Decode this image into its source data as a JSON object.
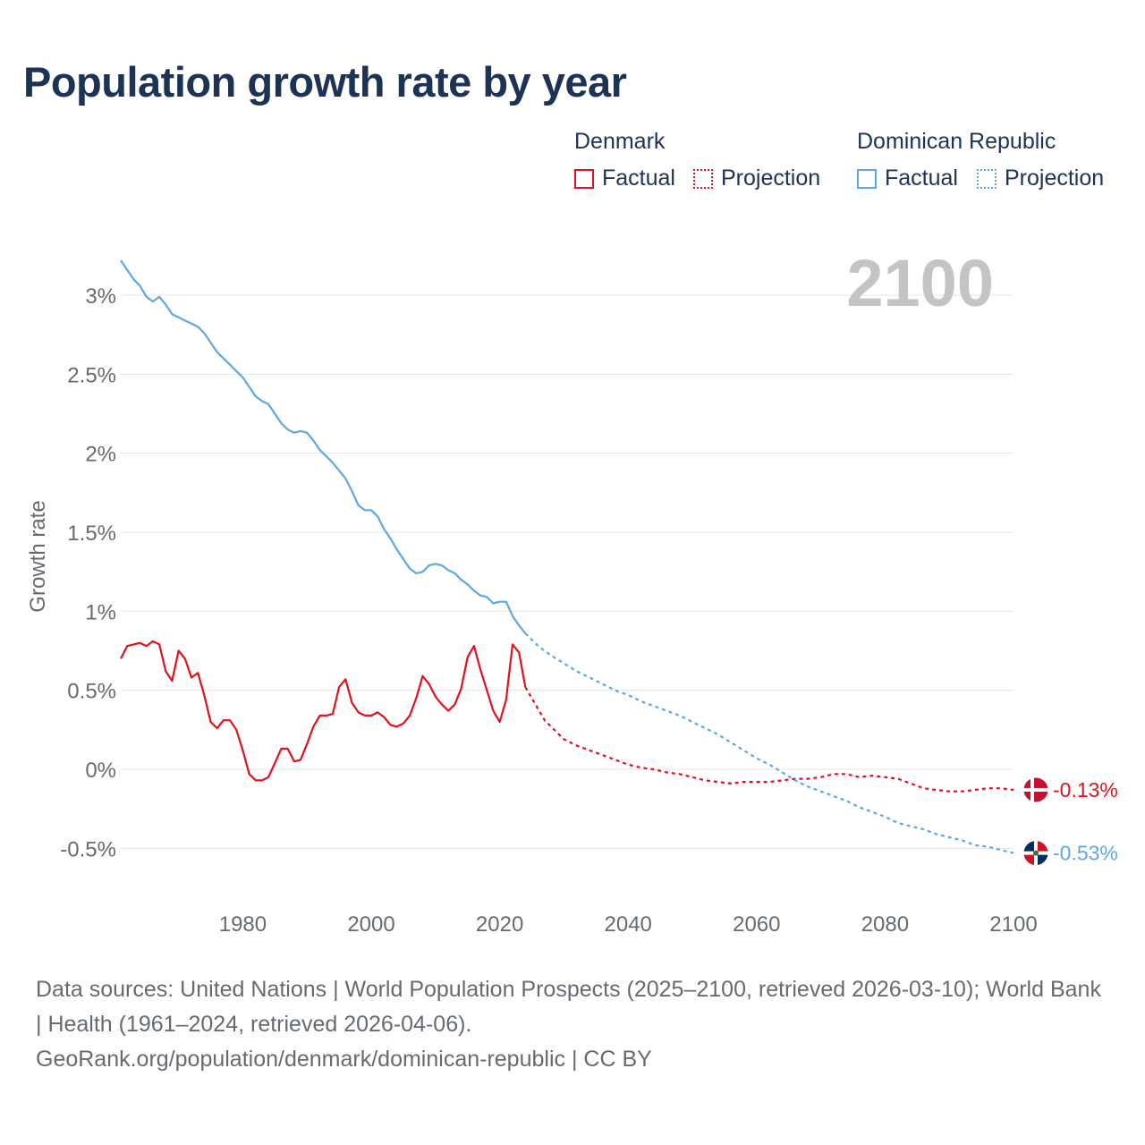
{
  "title": "Population growth rate by year",
  "legend": {
    "groups": [
      {
        "name": "Denmark",
        "factual": "Factual",
        "projection": "Projection"
      },
      {
        "name": "Dominican Republic",
        "factual": "Factual",
        "projection": "Projection"
      }
    ]
  },
  "colors": {
    "denmark": "#e5101c",
    "dominican": "#5fa7e3",
    "year_label": "#c4c4c4",
    "title": "#1c3355"
  },
  "footer": {
    "sources": "Data sources: United Nations | World Population Prospects (2025–2100, retrieved 2026-03-10); World Bank | Health (1961–2024, retrieved 2026-04-06).",
    "link": "GeoRank.org/population/denmark/dominican-republic | CC BY"
  },
  "chart_data": {
    "type": "line",
    "title": "Population growth rate by year",
    "ylabel": "Growth rate",
    "xlabel": "",
    "year_label": "2100",
    "xlim": [
      1961,
      2100
    ],
    "ylim": [
      -0.65,
      3.25
    ],
    "x_ticks": [
      1980,
      2000,
      2020,
      2040,
      2060,
      2080,
      2100
    ],
    "y_ticks": [
      {
        "value": -0.5,
        "label": "-0.5%"
      },
      {
        "value": 0,
        "label": "0%"
      },
      {
        "value": 0.5,
        "label": "0.5%"
      },
      {
        "value": 1,
        "label": "1%"
      },
      {
        "value": 1.5,
        "label": "1.5%"
      },
      {
        "value": 2,
        "label": "2%"
      },
      {
        "value": 2.5,
        "label": "2.5%"
      },
      {
        "value": 3,
        "label": "3%"
      }
    ],
    "series": [
      {
        "name": "Denmark",
        "end_label": "-0.13%",
        "flag": "denmark-flag",
        "factual": {
          "x": [
            1961,
            1962,
            1963,
            1964,
            1965,
            1966,
            1967,
            1968,
            1969,
            1970,
            1971,
            1972,
            1973,
            1974,
            1975,
            1976,
            1977,
            1978,
            1979,
            1980,
            1981,
            1982,
            1983,
            1984,
            1985,
            1986,
            1987,
            1988,
            1989,
            1990,
            1991,
            1992,
            1993,
            1994,
            1995,
            1996,
            1997,
            1998,
            1999,
            2000,
            2001,
            2002,
            2003,
            2004,
            2005,
            2006,
            2007,
            2008,
            2009,
            2010,
            2011,
            2012,
            2013,
            2014,
            2015,
            2016,
            2017,
            2018,
            2019,
            2020,
            2021,
            2022,
            2023,
            2024
          ],
          "y": [
            0.7,
            0.78,
            0.79,
            0.8,
            0.78,
            0.81,
            0.79,
            0.62,
            0.56,
            0.75,
            0.7,
            0.58,
            0.61,
            0.47,
            0.3,
            0.26,
            0.31,
            0.31,
            0.25,
            0.12,
            -0.03,
            -0.07,
            -0.07,
            -0.05,
            0.04,
            0.13,
            0.13,
            0.05,
            0.06,
            0.16,
            0.27,
            0.34,
            0.34,
            0.35,
            0.52,
            0.57,
            0.42,
            0.36,
            0.34,
            0.34,
            0.36,
            0.33,
            0.28,
            0.27,
            0.29,
            0.34,
            0.45,
            0.59,
            0.54,
            0.46,
            0.41,
            0.37,
            0.41,
            0.51,
            0.71,
            0.78,
            0.63,
            0.5,
            0.37,
            0.3,
            0.44,
            0.79,
            0.74,
            0.52
          ]
        },
        "projection": {
          "x": [
            2024,
            2025,
            2026,
            2027,
            2028,
            2029,
            2030,
            2032,
            2034,
            2036,
            2038,
            2040,
            2042,
            2044,
            2046,
            2048,
            2050,
            2052,
            2054,
            2056,
            2058,
            2060,
            2062,
            2064,
            2066,
            2068,
            2070,
            2072,
            2074,
            2076,
            2078,
            2080,
            2082,
            2084,
            2086,
            2088,
            2090,
            2092,
            2094,
            2096,
            2098,
            2100
          ],
          "y": [
            0.52,
            0.45,
            0.38,
            0.31,
            0.27,
            0.23,
            0.19,
            0.15,
            0.12,
            0.09,
            0.06,
            0.03,
            0.01,
            0.0,
            -0.02,
            -0.03,
            -0.05,
            -0.07,
            -0.08,
            -0.09,
            -0.08,
            -0.08,
            -0.08,
            -0.07,
            -0.06,
            -0.06,
            -0.05,
            -0.03,
            -0.03,
            -0.05,
            -0.04,
            -0.05,
            -0.06,
            -0.09,
            -0.12,
            -0.13,
            -0.14,
            -0.14,
            -0.13,
            -0.12,
            -0.12,
            -0.13
          ]
        }
      },
      {
        "name": "Dominican Republic",
        "end_label": "-0.53%",
        "flag": "dominican-republic-flag",
        "factual": {
          "x": [
            1961,
            1962,
            1963,
            1964,
            1965,
            1966,
            1967,
            1968,
            1969,
            1970,
            1971,
            1972,
            1973,
            1974,
            1975,
            1976,
            1977,
            1978,
            1979,
            1980,
            1981,
            1982,
            1983,
            1984,
            1985,
            1986,
            1987,
            1988,
            1989,
            1990,
            1991,
            1992,
            1993,
            1994,
            1995,
            1996,
            1997,
            1998,
            1999,
            2000,
            2001,
            2002,
            2003,
            2004,
            2005,
            2006,
            2007,
            2008,
            2009,
            2010,
            2011,
            2012,
            2013,
            2014,
            2015,
            2016,
            2017,
            2018,
            2019,
            2020,
            2021,
            2022,
            2023,
            2024
          ],
          "y": [
            3.22,
            3.16,
            3.1,
            3.06,
            2.99,
            2.96,
            2.99,
            2.94,
            2.88,
            2.86,
            2.84,
            2.82,
            2.8,
            2.76,
            2.7,
            2.64,
            2.6,
            2.56,
            2.52,
            2.48,
            2.42,
            2.36,
            2.33,
            2.31,
            2.25,
            2.19,
            2.15,
            2.13,
            2.14,
            2.13,
            2.08,
            2.02,
            1.98,
            1.94,
            1.89,
            1.84,
            1.76,
            1.67,
            1.64,
            1.64,
            1.6,
            1.52,
            1.46,
            1.39,
            1.33,
            1.27,
            1.24,
            1.25,
            1.29,
            1.3,
            1.29,
            1.26,
            1.24,
            1.2,
            1.17,
            1.13,
            1.1,
            1.09,
            1.05,
            1.06,
            1.06,
            0.97,
            0.91,
            0.86
          ]
        },
        "projection": {
          "x": [
            2024,
            2026,
            2028,
            2030,
            2032,
            2034,
            2036,
            2038,
            2040,
            2042,
            2044,
            2046,
            2048,
            2050,
            2052,
            2054,
            2056,
            2058,
            2060,
            2062,
            2064,
            2066,
            2068,
            2070,
            2072,
            2074,
            2076,
            2078,
            2080,
            2082,
            2084,
            2086,
            2088,
            2090,
            2092,
            2094,
            2096,
            2098,
            2100
          ],
          "y": [
            0.86,
            0.78,
            0.72,
            0.67,
            0.62,
            0.58,
            0.54,
            0.5,
            0.47,
            0.43,
            0.4,
            0.37,
            0.34,
            0.3,
            0.26,
            0.22,
            0.17,
            0.12,
            0.07,
            0.03,
            -0.02,
            -0.07,
            -0.11,
            -0.14,
            -0.17,
            -0.2,
            -0.24,
            -0.27,
            -0.3,
            -0.34,
            -0.36,
            -0.38,
            -0.41,
            -0.43,
            -0.45,
            -0.48,
            -0.49,
            -0.51,
            -0.53
          ]
        }
      }
    ]
  }
}
